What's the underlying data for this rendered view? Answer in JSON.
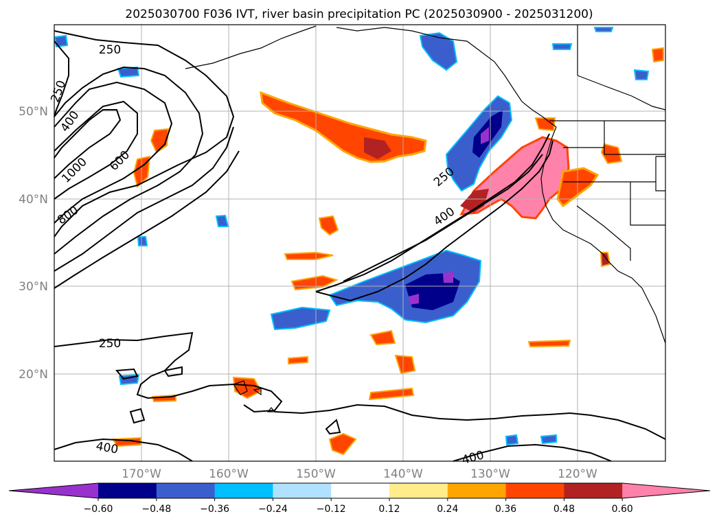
{
  "title": "2025030700 F036 IVT, river basin precipitation PC (2025030900 - 2025031200)",
  "map": {
    "lat_labels": [
      "50°N",
      "40°N",
      "30°N",
      "20°N"
    ],
    "lon_labels": [
      "170°W",
      "160°W",
      "150°W",
      "140°W",
      "130°W",
      "120°W"
    ],
    "contour_labels": [
      "250",
      "250",
      "400",
      "1000",
      "600",
      "800",
      "250",
      "400",
      "250",
      "400",
      "400"
    ]
  },
  "colorbar": {
    "ticks": [
      "−0.60",
      "−0.48",
      "−0.36",
      "−0.24",
      "−0.12",
      "0.12",
      "0.24",
      "0.36",
      "0.48",
      "0.60"
    ],
    "colors": [
      "#9932cc",
      "#00008b",
      "#3a5fcd",
      "#00bfff",
      "#b0e2ff",
      "#ffffff",
      "#ffec8b",
      "#ffa500",
      "#ff4500",
      "#b22222",
      "#ff82ab"
    ]
  }
}
